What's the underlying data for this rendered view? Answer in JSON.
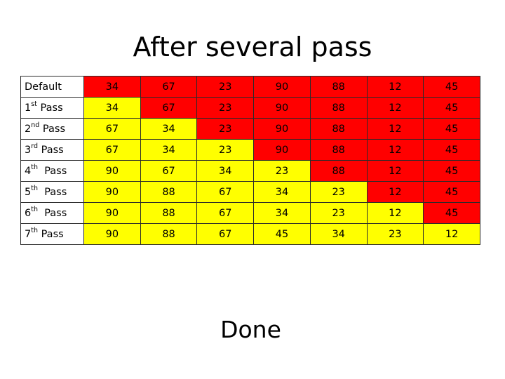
{
  "title": "After several pass",
  "footer": "Done",
  "colors": {
    "unsorted": "#ff0000",
    "sorted": "#ffff00"
  },
  "rows": [
    {
      "label": "Default",
      "ord": "",
      "suffix": "",
      "cells": [
        {
          "v": "34",
          "c": "red"
        },
        {
          "v": "67",
          "c": "red"
        },
        {
          "v": "23",
          "c": "red"
        },
        {
          "v": "90",
          "c": "red"
        },
        {
          "v": "88",
          "c": "red"
        },
        {
          "v": "12",
          "c": "red"
        },
        {
          "v": "45",
          "c": "red"
        }
      ]
    },
    {
      "label": "1",
      "ord": "st",
      "suffix": " Pass",
      "cells": [
        {
          "v": "34",
          "c": "yellow"
        },
        {
          "v": "67",
          "c": "red"
        },
        {
          "v": "23",
          "c": "red"
        },
        {
          "v": "90",
          "c": "red"
        },
        {
          "v": "88",
          "c": "red"
        },
        {
          "v": "12",
          "c": "red"
        },
        {
          "v": "45",
          "c": "red"
        }
      ]
    },
    {
      "label": "2",
      "ord": "nd",
      "suffix": " Pass",
      "cells": [
        {
          "v": "67",
          "c": "yellow"
        },
        {
          "v": "34",
          "c": "yellow"
        },
        {
          "v": "23",
          "c": "red"
        },
        {
          "v": "90",
          "c": "red"
        },
        {
          "v": "88",
          "c": "red"
        },
        {
          "v": "12",
          "c": "red"
        },
        {
          "v": "45",
          "c": "red"
        }
      ]
    },
    {
      "label": "3",
      "ord": "rd",
      "suffix": " Pass",
      "cells": [
        {
          "v": "67",
          "c": "yellow"
        },
        {
          "v": "34",
          "c": "yellow"
        },
        {
          "v": "23",
          "c": "yellow"
        },
        {
          "v": "90",
          "c": "red"
        },
        {
          "v": "88",
          "c": "red"
        },
        {
          "v": "12",
          "c": "red"
        },
        {
          "v": "45",
          "c": "red"
        }
      ]
    },
    {
      "label": "4",
      "ord": "th",
      "suffix": "  Pass",
      "cells": [
        {
          "v": "90",
          "c": "yellow"
        },
        {
          "v": "67",
          "c": "yellow"
        },
        {
          "v": "34",
          "c": "yellow"
        },
        {
          "v": "23",
          "c": "yellow"
        },
        {
          "v": "88",
          "c": "red"
        },
        {
          "v": "12",
          "c": "red"
        },
        {
          "v": "45",
          "c": "red"
        }
      ]
    },
    {
      "label": "5",
      "ord": "th",
      "suffix": "  Pass",
      "cells": [
        {
          "v": "90",
          "c": "yellow"
        },
        {
          "v": "88",
          "c": "yellow"
        },
        {
          "v": "67",
          "c": "yellow"
        },
        {
          "v": "34",
          "c": "yellow"
        },
        {
          "v": "23",
          "c": "yellow"
        },
        {
          "v": "12",
          "c": "red"
        },
        {
          "v": "45",
          "c": "red"
        }
      ]
    },
    {
      "label": "6",
      "ord": "th",
      "suffix": "  Pass",
      "cells": [
        {
          "v": "90",
          "c": "yellow"
        },
        {
          "v": "88",
          "c": "yellow"
        },
        {
          "v": "67",
          "c": "yellow"
        },
        {
          "v": "34",
          "c": "yellow"
        },
        {
          "v": "23",
          "c": "yellow"
        },
        {
          "v": "12",
          "c": "yellow"
        },
        {
          "v": "45",
          "c": "red"
        }
      ]
    },
    {
      "label": "7",
      "ord": "th",
      "suffix": " Pass",
      "cells": [
        {
          "v": "90",
          "c": "yellow"
        },
        {
          "v": "88",
          "c": "yellow"
        },
        {
          "v": "67",
          "c": "yellow"
        },
        {
          "v": "45",
          "c": "yellow"
        },
        {
          "v": "34",
          "c": "yellow"
        },
        {
          "v": "23",
          "c": "yellow"
        },
        {
          "v": "12",
          "c": "yellow"
        }
      ]
    }
  ]
}
